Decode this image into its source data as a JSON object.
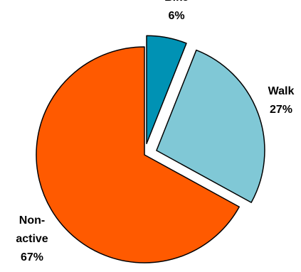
{
  "chart_data": {
    "type": "pie",
    "categories": [
      "Bike",
      "Walk",
      "Non-active"
    ],
    "values": [
      6,
      27,
      67
    ],
    "value_labels": [
      "6%",
      "27%",
      "67%"
    ],
    "colors": [
      "#0092b4",
      "#80c8d6",
      "#ff5a00"
    ]
  }
}
